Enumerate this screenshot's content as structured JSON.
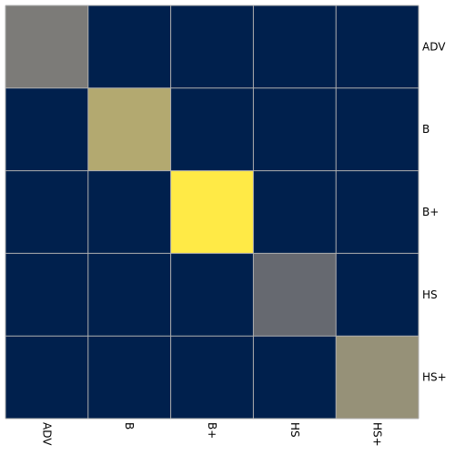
{
  "chart_data": {
    "type": "heatmap",
    "title": "",
    "xlabel": "",
    "ylabel": "",
    "x_categories": [
      "ADV",
      "B",
      "B+",
      "HS",
      "HS+"
    ],
    "y_categories": [
      "ADV",
      "B",
      "B+",
      "HS",
      "HS+"
    ],
    "x_tick_rotation": "vertical",
    "y_tick_position": "right",
    "grid": true,
    "colormap": "cividis",
    "colors": {
      "low": "#00204d",
      "mid": "#7c7b78",
      "high": "#ffea46",
      "grid": "#b0b0b0"
    },
    "values": [
      [
        0.37,
        0.0,
        0.0,
        0.0,
        0.0
      ],
      [
        0.0,
        0.61,
        0.0,
        0.0,
        0.0
      ],
      [
        0.0,
        0.0,
        1.0,
        0.0,
        0.0
      ],
      [
        0.0,
        0.0,
        0.0,
        0.31,
        0.0
      ],
      [
        0.0,
        0.0,
        0.0,
        0.0,
        0.54
      ]
    ]
  }
}
